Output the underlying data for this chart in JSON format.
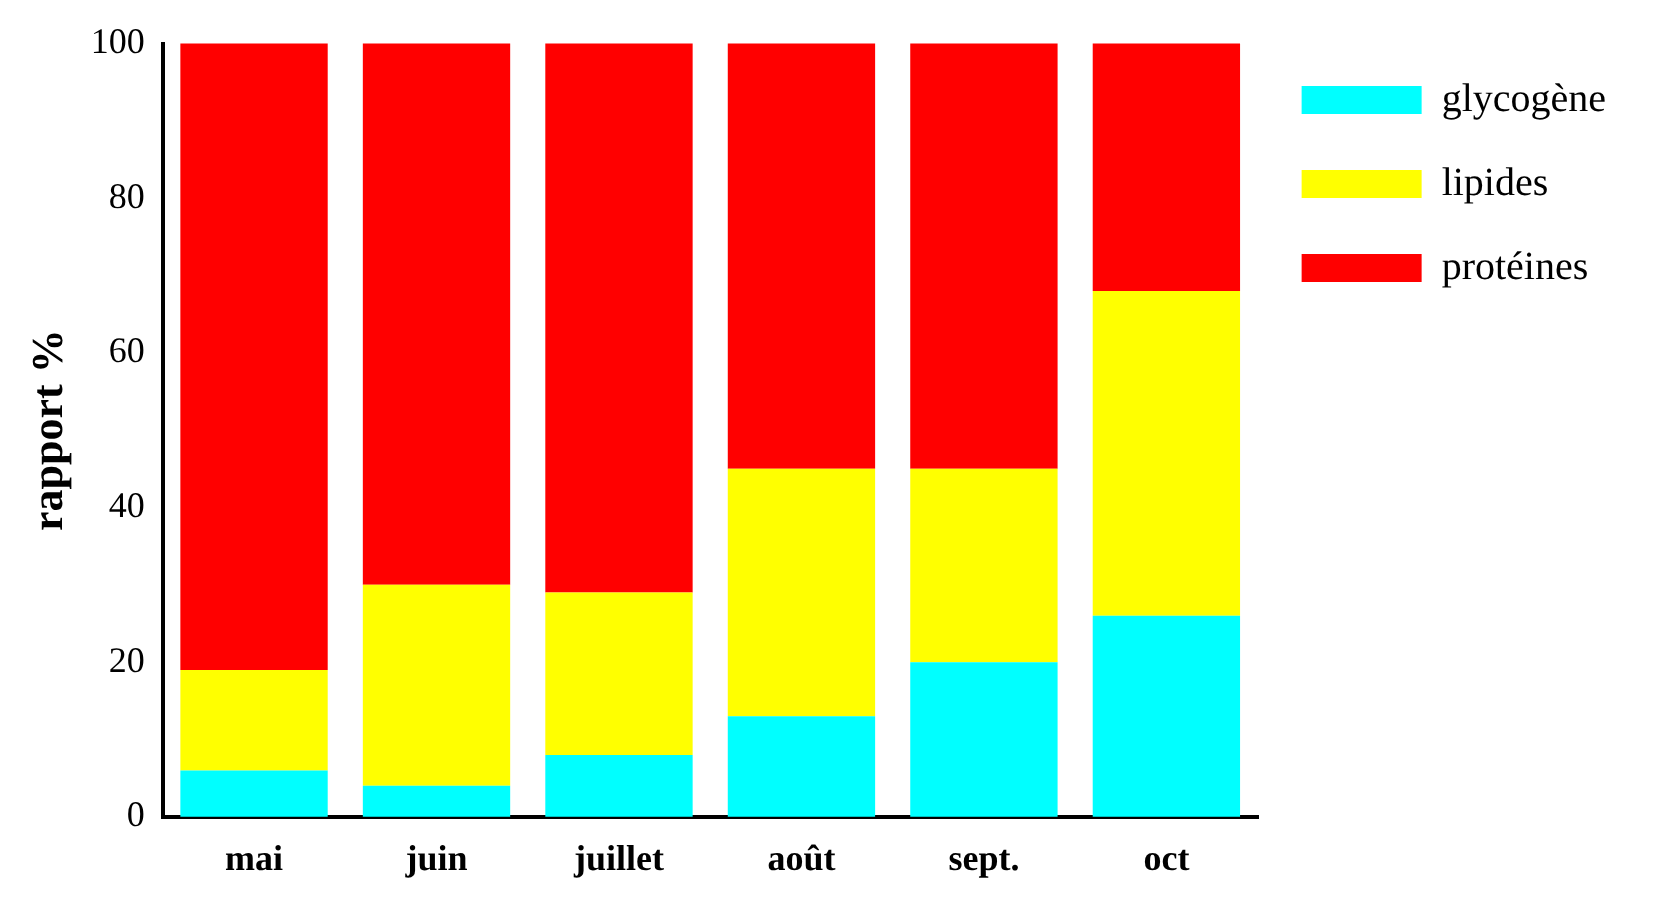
{
  "chart_data": {
    "type": "bar",
    "stacked": true,
    "ylabel": "rapport %",
    "categories": [
      "mai",
      "juin",
      "juillet",
      "août",
      "sept.",
      "oct"
    ],
    "series": [
      {
        "name": "glycogène",
        "color": "#00ffff",
        "values": [
          6,
          4,
          8,
          13,
          20,
          26
        ]
      },
      {
        "name": "lipides",
        "color": "#ffff00",
        "values": [
          13,
          26,
          21,
          32,
          25,
          42
        ]
      },
      {
        "name": "protéines",
        "color": "#ff0000",
        "values": [
          81,
          70,
          71,
          55,
          55,
          32
        ]
      }
    ],
    "ylim": [
      0,
      100
    ],
    "yticks": [
      0,
      20,
      40,
      60,
      80,
      100
    ],
    "grid": false,
    "legend": "right"
  }
}
